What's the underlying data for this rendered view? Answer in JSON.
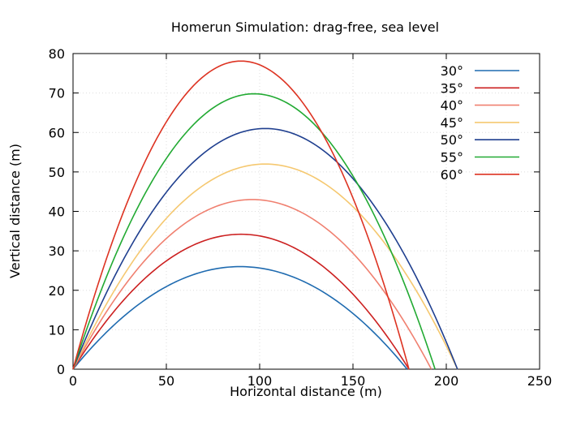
{
  "chart_data": {
    "type": "line",
    "title": "Homerun Simulation: drag-free, sea level",
    "xlabel": "Horizontal distance (m)",
    "ylabel": "Vertical distance (m)",
    "xlim": [
      0,
      250
    ],
    "ylim": [
      0,
      80
    ],
    "xticks": [
      0,
      50,
      100,
      150,
      200,
      250
    ],
    "yticks": [
      0,
      10,
      20,
      30,
      40,
      50,
      60,
      70,
      80
    ],
    "grid": true,
    "legend_position": "top-right",
    "series": [
      {
        "name": "30°",
        "color": "#1f6bb0",
        "x": [
          0,
          22.5,
          45,
          67.5,
          89.5,
          112,
          134.5,
          157,
          179
        ],
        "y": [
          0,
          11.4,
          19.5,
          24.4,
          26.0,
          24.4,
          19.5,
          11.4,
          0
        ]
      },
      {
        "name": "35°",
        "color": "#cc2020",
        "x": [
          0,
          22.5,
          45,
          67.5,
          90,
          112.5,
          135,
          157.5,
          180
        ],
        "y": [
          0,
          15.0,
          25.7,
          32.1,
          34.2,
          32.1,
          25.7,
          15.0,
          0
        ]
      },
      {
        "name": "40°",
        "color": "#f08070",
        "x": [
          0,
          24,
          48,
          72,
          96,
          120,
          144,
          168,
          192
        ],
        "y": [
          0,
          18.8,
          32.3,
          40.3,
          43.0,
          40.3,
          32.3,
          18.8,
          0
        ]
      },
      {
        "name": "45°",
        "color": "#f5c870",
        "x": [
          0,
          25.75,
          51.5,
          77.25,
          103,
          128.75,
          154.5,
          180.25,
          206
        ],
        "y": [
          0,
          22.75,
          39.0,
          48.75,
          52.0,
          48.75,
          39.0,
          22.75,
          0
        ]
      },
      {
        "name": "50°",
        "color": "#1f3f8f",
        "x": [
          0,
          25.75,
          51.5,
          77.25,
          103,
          128.75,
          154.5,
          180.25,
          206
        ],
        "y": [
          0,
          26.7,
          45.8,
          57.2,
          61.0,
          57.2,
          45.8,
          26.7,
          0
        ]
      },
      {
        "name": "55°",
        "color": "#22aa33",
        "x": [
          0,
          24.25,
          48.5,
          72.75,
          97,
          121.25,
          145.5,
          169.75,
          194
        ],
        "y": [
          0,
          30.6,
          52.4,
          65.4,
          69.8,
          65.4,
          52.4,
          30.6,
          0
        ]
      },
      {
        "name": "60°",
        "color": "#dd3322",
        "x": [
          0,
          22.5,
          45,
          67.5,
          90,
          112.5,
          135,
          157.5,
          180
        ],
        "y": [
          0,
          34.2,
          58.6,
          73.2,
          78.1,
          73.2,
          58.6,
          34.2,
          0
        ]
      }
    ]
  }
}
